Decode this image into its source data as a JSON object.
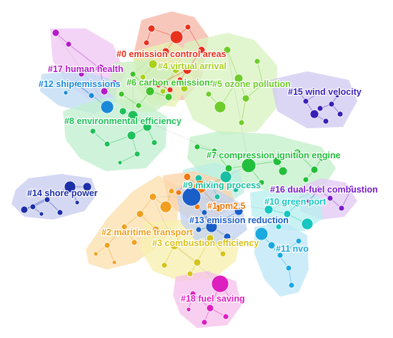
{
  "clusters": [
    {
      "id": "c0",
      "label": "#0 emission control areas",
      "color": "#e8321e",
      "hull": "#f6b7a8"
    },
    {
      "id": "c1",
      "label": "#1 pm2.5",
      "color": "#f07a12",
      "hull": "#fbd3a9"
    },
    {
      "id": "c2",
      "label": "#2 maritime transport",
      "color": "#f0a01e",
      "hull": "#fbe0b0"
    },
    {
      "id": "c3",
      "label": "#3 combustion efficiency",
      "color": "#d7c21a",
      "hull": "#f7f0b0"
    },
    {
      "id": "c4",
      "label": "#4 virtual arrival",
      "color": "#a9d11c",
      "hull": "#e6f3b5"
    },
    {
      "id": "c5",
      "label": "#5 ozone pollution",
      "color": "#6fcd2a",
      "hull": "#d8f3c0"
    },
    {
      "id": "c6",
      "label": "#6 carbon emissions",
      "color": "#3ec22a",
      "hull": "#ccf0c0"
    },
    {
      "id": "c7",
      "label": "#7 compression ignition engine",
      "color": "#21bf3a",
      "hull": "#c4efcb"
    },
    {
      "id": "c8",
      "label": "#8 environmental efficiency",
      "color": "#1fc05a",
      "hull": "#c2efd0"
    },
    {
      "id": "c9",
      "label": "#9 mixing process",
      "color": "#19bfa0",
      "hull": "#bdeee4"
    },
    {
      "id": "c10",
      "label": "#10 green port",
      "color": "#14c7c0",
      "hull": "#b9f0ee"
    },
    {
      "id": "c11",
      "label": "#11 nvo",
      "color": "#1aa9e0",
      "hull": "#bfe7f7"
    },
    {
      "id": "c12",
      "label": "#12 ship emissions",
      "color": "#1a8ad8",
      "hull": "#c0dcf4"
    },
    {
      "id": "c13",
      "label": "#13 emission reduction",
      "color": "#1a5ec8",
      "hull": "#c3d2f0"
    },
    {
      "id": "c14",
      "label": "#14 shore power",
      "color": "#1d2fa8",
      "hull": "#c9cdf0"
    },
    {
      "id": "c15",
      "label": "#15 wind velocity",
      "color": "#3a1fb8",
      "hull": "#d2caf2"
    },
    {
      "id": "c16",
      "label": "#16 dual-fuel combustion",
      "color": "#7a1cc8",
      "hull": "#e3c9f4"
    },
    {
      "id": "c17",
      "label": "#17 human health",
      "color": "#b41cc8",
      "hull": "#efc6f3"
    },
    {
      "id": "c18",
      "label": "#18 fuel saving",
      "color": "#de1fc0",
      "hull": "#f6c2ec"
    }
  ],
  "icons": {
    "node": "circle-node",
    "edge": "link-line"
  }
}
